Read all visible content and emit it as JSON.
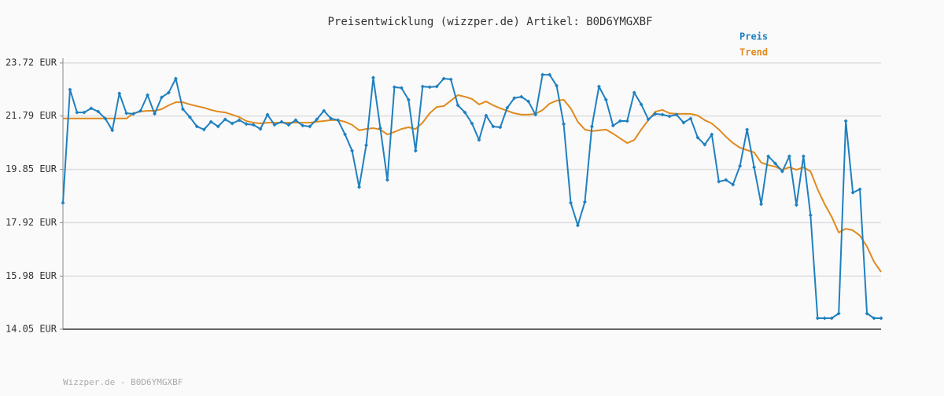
{
  "chart_data": {
    "type": "line",
    "title": "Preisentwicklung (wizzper.de) Artikel: B0D6YMGXBF",
    "footer": "Wizzper.de - B0D6YMGXBF",
    "ylim": [
      14.05,
      23.72
    ],
    "yticks": [
      {
        "value": 14.05,
        "label": "14.05 EUR"
      },
      {
        "value": 15.98,
        "label": "15.98 EUR"
      },
      {
        "value": 17.92,
        "label": "17.92 EUR"
      },
      {
        "value": 19.85,
        "label": "19.85 EUR"
      },
      {
        "value": 21.79,
        "label": "21.79 EUR"
      },
      {
        "value": 23.72,
        "label": "23.72 EUR"
      }
    ],
    "grid": true,
    "legend": "top-right",
    "series": [
      {
        "name": "Preis",
        "color": "#1f80c0",
        "marker": "diamond",
        "values": [
          18.64,
          22.75,
          21.92,
          21.92,
          22.07,
          21.95,
          21.7,
          21.27,
          22.61,
          21.89,
          21.87,
          21.98,
          22.55,
          21.87,
          22.47,
          22.64,
          23.15,
          22.04,
          21.75,
          21.41,
          21.3,
          21.58,
          21.41,
          21.67,
          21.52,
          21.64,
          21.5,
          21.47,
          21.32,
          21.84,
          21.47,
          21.58,
          21.47,
          21.64,
          21.44,
          21.41,
          21.67,
          21.98,
          21.7,
          21.64,
          21.12,
          20.53,
          19.21,
          20.73,
          23.18,
          21.35,
          19.47,
          22.84,
          22.81,
          22.38,
          20.53,
          22.86,
          22.84,
          22.86,
          23.15,
          23.12,
          22.18,
          21.92,
          21.52,
          20.92,
          21.81,
          21.41,
          21.38,
          22.09,
          22.44,
          22.49,
          22.32,
          21.84,
          23.29,
          23.29,
          22.89,
          21.5,
          18.64,
          17.82,
          18.67,
          21.41,
          22.86,
          22.38,
          21.44,
          21.61,
          21.61,
          22.64,
          22.21,
          21.67,
          21.87,
          21.84,
          21.78,
          21.84,
          21.55,
          21.7,
          21.01,
          20.75,
          21.12,
          19.41,
          19.47,
          19.3,
          19.98,
          21.3,
          19.93,
          18.59,
          20.33,
          20.07,
          19.78,
          20.33,
          18.56,
          20.33,
          18.19,
          14.45,
          14.45,
          14.45,
          14.62,
          21.61,
          19.01,
          19.13,
          14.62,
          14.45,
          14.45
        ]
      },
      {
        "name": "Trend",
        "color": "#e08a1e",
        "values": [
          21.7,
          21.7,
          21.7,
          21.7,
          21.7,
          21.7,
          21.7,
          21.7,
          21.7,
          21.7,
          21.89,
          21.95,
          21.98,
          21.98,
          22.04,
          22.18,
          22.29,
          22.29,
          22.21,
          22.15,
          22.09,
          22.01,
          21.95,
          21.92,
          21.84,
          21.75,
          21.61,
          21.55,
          21.52,
          21.55,
          21.55,
          21.55,
          21.55,
          21.55,
          21.55,
          21.55,
          21.58,
          21.61,
          21.64,
          21.64,
          21.58,
          21.47,
          21.27,
          21.32,
          21.35,
          21.3,
          21.12,
          21.21,
          21.32,
          21.38,
          21.32,
          21.55,
          21.89,
          22.12,
          22.15,
          22.35,
          22.55,
          22.49,
          22.41,
          22.21,
          22.32,
          22.18,
          22.07,
          21.98,
          21.89,
          21.84,
          21.84,
          21.87,
          22.01,
          22.24,
          22.35,
          22.38,
          22.07,
          21.58,
          21.3,
          21.24,
          21.27,
          21.3,
          21.15,
          20.98,
          20.81,
          20.92,
          21.3,
          21.64,
          21.95,
          22.01,
          21.89,
          21.87,
          21.87,
          21.87,
          21.81,
          21.64,
          21.52,
          21.3,
          21.04,
          20.81,
          20.64,
          20.55,
          20.47,
          20.1,
          20.01,
          19.95,
          19.84,
          19.93,
          19.84,
          19.93,
          19.78,
          19.13,
          18.59,
          18.13,
          17.56,
          17.7,
          17.64,
          17.45,
          17.05,
          16.5,
          16.13
        ]
      }
    ]
  }
}
